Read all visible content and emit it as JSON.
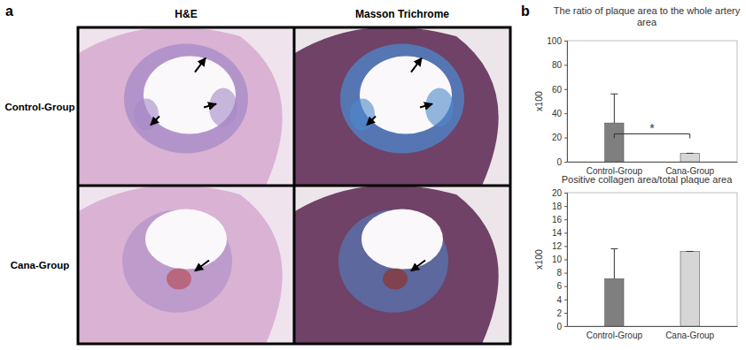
{
  "figure": {
    "panel_labels": [
      "a",
      "b"
    ],
    "columns": [
      "H&E",
      "Masson Trichrome"
    ],
    "rows": [
      "Control-Group",
      "Cana-Group"
    ]
  },
  "chart_data": [
    {
      "type": "bar",
      "title": "The ratio of plaque area to the whole artery area",
      "ylabel": "x100",
      "categories": [
        "Control-Group",
        "Cana-Group"
      ],
      "values": [
        32,
        7
      ],
      "errors": [
        24,
        0
      ],
      "colors": [
        "#7f7f7f",
        "#d6d6d6"
      ],
      "ylim": [
        0,
        100
      ],
      "yticks": [
        0,
        20,
        40,
        60,
        80,
        100
      ],
      "annotations": [
        "*"
      ]
    },
    {
      "type": "bar",
      "title": "Positive collagen area/total plaque area",
      "ylabel": "x100",
      "categories": [
        "Control-Group",
        "Cana-Group"
      ],
      "values": [
        7.1,
        11.2
      ],
      "errors": [
        4.5,
        0
      ],
      "colors": [
        "#7f7f7f",
        "#d6d6d6"
      ],
      "ylim": [
        0,
        20
      ],
      "yticks": [
        0,
        2,
        4,
        6,
        8,
        10,
        12,
        14,
        16,
        18,
        20
      ]
    }
  ]
}
